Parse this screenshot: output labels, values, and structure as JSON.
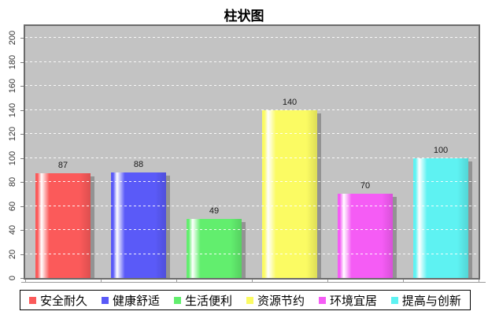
{
  "chart_data": {
    "type": "bar",
    "title": "柱状图",
    "categories": [
      "安全耐久",
      "健康舒适",
      "生活便利",
      "资源节约",
      "环境宜居",
      "提高与创新"
    ],
    "values": [
      87,
      88,
      49,
      140,
      70,
      100
    ],
    "colors": [
      "#fb5a5a",
      "#5a5af8",
      "#62ee6e",
      "#fbfb63",
      "#f55cf5",
      "#5ef2f2"
    ],
    "value_labels": [
      87,
      88,
      49,
      140,
      70,
      100
    ],
    "ylim": [
      0,
      210
    ],
    "yticks": [
      0,
      20,
      40,
      60,
      80,
      100,
      120,
      140,
      160,
      180,
      200
    ],
    "ytick_label_rotation": -90,
    "grid": "horizontal white dashed lines",
    "plot_background": "#c3c3c3",
    "legend_position": "bottom",
    "legend_entries": [
      "安全耐久",
      "健康舒适",
      "生活便利",
      "资源节约",
      "环境宜居",
      "提高与创新"
    ]
  }
}
